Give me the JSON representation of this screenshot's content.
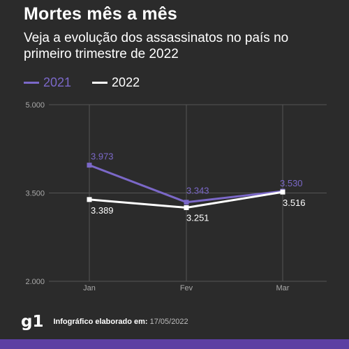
{
  "header": {
    "title": "Mortes mês a mês",
    "subtitle": "Veja a evolução dos assassinatos no país no primeiro trimestre de 2022"
  },
  "colors": {
    "background": "#2b2b2b",
    "series_2021": "#7b68c8",
    "series_2022": "#ffffff",
    "grid": "#555555",
    "accent_bar": "#5c3fa3"
  },
  "chart_data": {
    "type": "line",
    "categories": [
      "Jan",
      "Fev",
      "Mar"
    ],
    "series": [
      {
        "name": "2021",
        "values": [
          3973,
          3343,
          3530
        ],
        "labels": [
          "3.973",
          "3.343",
          "3.530"
        ],
        "color": "#7b68c8"
      },
      {
        "name": "2022",
        "values": [
          3389,
          3251,
          3516
        ],
        "labels": [
          "3.389",
          "3.251",
          "3.516"
        ],
        "color": "#ffffff"
      }
    ],
    "yticks": [
      2000,
      3500,
      5000
    ],
    "ytick_labels": [
      "2.000",
      "3.500",
      "5.000"
    ],
    "ylim": [
      2000,
      5000
    ],
    "legend_position": "top-left",
    "grid": true
  },
  "footer": {
    "logo": "g1",
    "credit_label": "Infográfico elaborado em:",
    "credit_date": "17/05/2022"
  }
}
